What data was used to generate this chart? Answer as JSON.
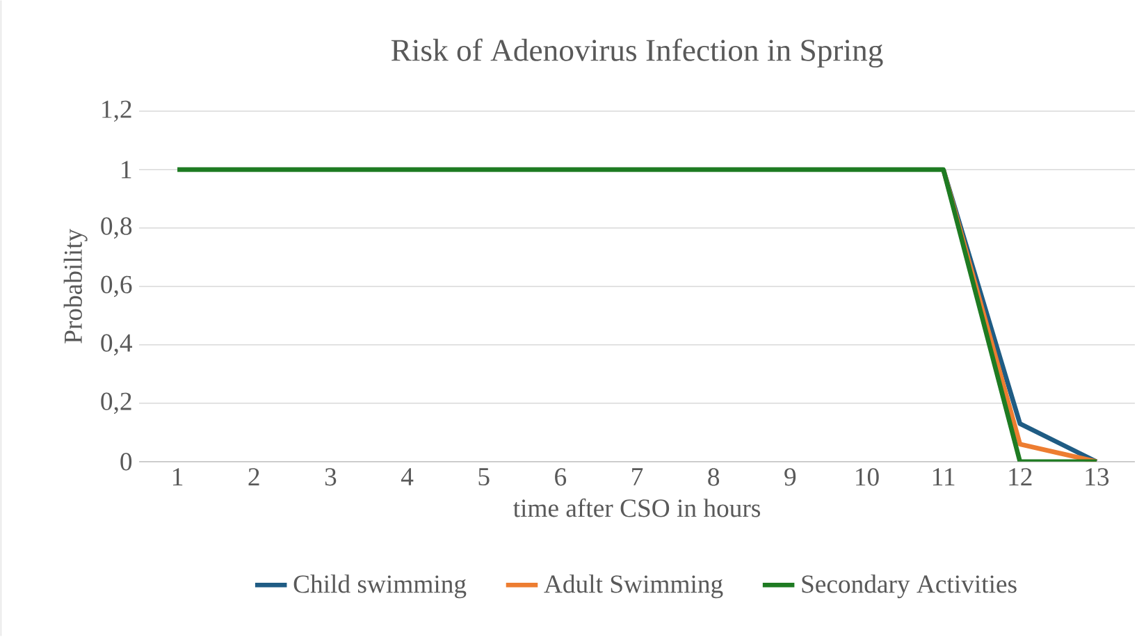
{
  "chart_data": {
    "type": "line",
    "title": "Risk of Adenovirus Infection in Spring",
    "xlabel": "time after CSO in hours",
    "ylabel": "Probability",
    "categories": [
      "1",
      "2",
      "3",
      "4",
      "5",
      "6",
      "7",
      "8",
      "9",
      "10",
      "11",
      "12",
      "13"
    ],
    "series": [
      {
        "name": "Child swimming",
        "color": "#1f5c84",
        "values": [
          null,
          null,
          null,
          null,
          null,
          null,
          null,
          null,
          null,
          null,
          1,
          0.13,
          0
        ]
      },
      {
        "name": "Adult Swimming",
        "color": "#ed7d31",
        "values": [
          null,
          null,
          null,
          null,
          null,
          null,
          null,
          null,
          null,
          null,
          1,
          0.06,
          0
        ]
      },
      {
        "name": "Secondary Activities",
        "color": "#1e7b22",
        "values": [
          1,
          1,
          1,
          1,
          1,
          1,
          1,
          1,
          1,
          1,
          1,
          0,
          0
        ]
      }
    ],
    "ylim": [
      0,
      1.2
    ],
    "yticks": [
      0,
      {
        "value": 0.2,
        "label": "0,2"
      },
      {
        "value": 0.4,
        "label": "0,4"
      },
      {
        "value": 0.6,
        "label": "0,6"
      },
      {
        "value": 0.8,
        "label": "0,8"
      },
      1,
      {
        "value": 1.2,
        "label": "1,2"
      }
    ],
    "grid": "y",
    "legend": "bottom",
    "marker": "none",
    "line_style": "solid"
  }
}
